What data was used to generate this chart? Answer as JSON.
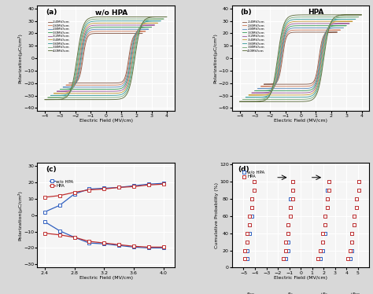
{
  "panel_a_label": "(a)",
  "panel_b_label": "(b)",
  "panel_c_label": "(c)",
  "panel_d_label": "(d)",
  "wo_hpa_title": "w/o HPA",
  "hpa_title": "HPA",
  "xlabel_ef": "Electric Field (MV/cm)",
  "ylabel_pol": "Polarization(μC/cm²)",
  "ylabel_prob": "Cumulative Probability (%)",
  "amplitudes": [
    2.4,
    2.6,
    2.8,
    3.0,
    3.2,
    3.4,
    3.6,
    3.8,
    4.0
  ],
  "loop_colors_a": [
    "#8B6050",
    "#D08060",
    "#6090C0",
    "#40A060",
    "#A060A0",
    "#C8A040",
    "#40A0A0",
    "#80B080",
    "#607040"
  ],
  "loop_colors_b": [
    "#8B6050",
    "#D08060",
    "#6090C0",
    "#40A060",
    "#A060A0",
    "#C8A040",
    "#40A0A0",
    "#80B080",
    "#607040"
  ],
  "panel_c_ef": [
    2.4,
    2.6,
    2.8,
    3.0,
    3.2,
    3.4,
    3.6,
    3.8,
    4.0
  ],
  "panel_c_wo_hpa_pr": [
    2.0,
    6.0,
    13.0,
    16.0,
    16.5,
    17.0,
    18.0,
    19.0,
    19.5
  ],
  "panel_c_wo_hpa_nr": [
    -4.0,
    -9.5,
    -13.5,
    -17.0,
    -17.5,
    -18.5,
    -19.5,
    -20.0,
    -20.0
  ],
  "panel_c_hpa_pr": [
    11.0,
    12.0,
    14.0,
    15.5,
    16.0,
    17.0,
    17.5,
    18.5,
    19.0
  ],
  "panel_c_hpa_nr": [
    -11.0,
    -12.0,
    -13.5,
    -16.0,
    -17.0,
    -18.0,
    -19.0,
    -19.5,
    -19.5
  ],
  "panel_d_prob": [
    10,
    20,
    30,
    40,
    50,
    60,
    70,
    80,
    90,
    100
  ],
  "panel_d_wo_ebd_x": [
    -4.7,
    -4.7,
    -4.7,
    -4.5,
    -4.5,
    -4.3,
    -4.3,
    -4.3,
    -4.1,
    -4.1
  ],
  "panel_d_hpa_ebd_x": [
    -4.9,
    -4.9,
    -4.7,
    -4.7,
    -4.5,
    -4.5,
    -4.3,
    -4.3,
    -4.1,
    -4.1
  ],
  "panel_d_wo_ecn_x": [
    -1.3,
    -1.1,
    -1.1,
    -1.1,
    -1.1,
    -0.9,
    -0.9,
    -0.9,
    -0.7,
    -0.7
  ],
  "panel_d_hpa_ecn_x": [
    -1.5,
    -1.3,
    -1.3,
    -1.1,
    -1.1,
    -0.9,
    -0.9,
    -0.7,
    -0.7,
    -0.7
  ],
  "panel_d_wo_ecp_x": [
    1.7,
    1.9,
    1.9,
    2.1,
    2.1,
    2.1,
    2.3,
    2.3,
    2.3,
    2.5
  ],
  "panel_d_hpa_ecp_x": [
    1.5,
    1.7,
    1.9,
    1.9,
    2.1,
    2.1,
    2.3,
    2.3,
    2.5,
    2.5
  ],
  "panel_d_wo_ebdp_x": [
    4.3,
    4.5,
    4.5,
    4.5,
    4.7,
    4.7,
    4.9,
    4.9,
    5.1,
    5.1
  ],
  "panel_d_hpa_ebdp_x": [
    4.1,
    4.3,
    4.5,
    4.5,
    4.7,
    4.7,
    4.9,
    4.9,
    5.1,
    5.1
  ],
  "wo_hpa_color": "#3060C0",
  "hpa_color": "#C03030",
  "background_color": "#f5f5f5",
  "grid_color": "white",
  "fig_bg": "#d8d8d8"
}
